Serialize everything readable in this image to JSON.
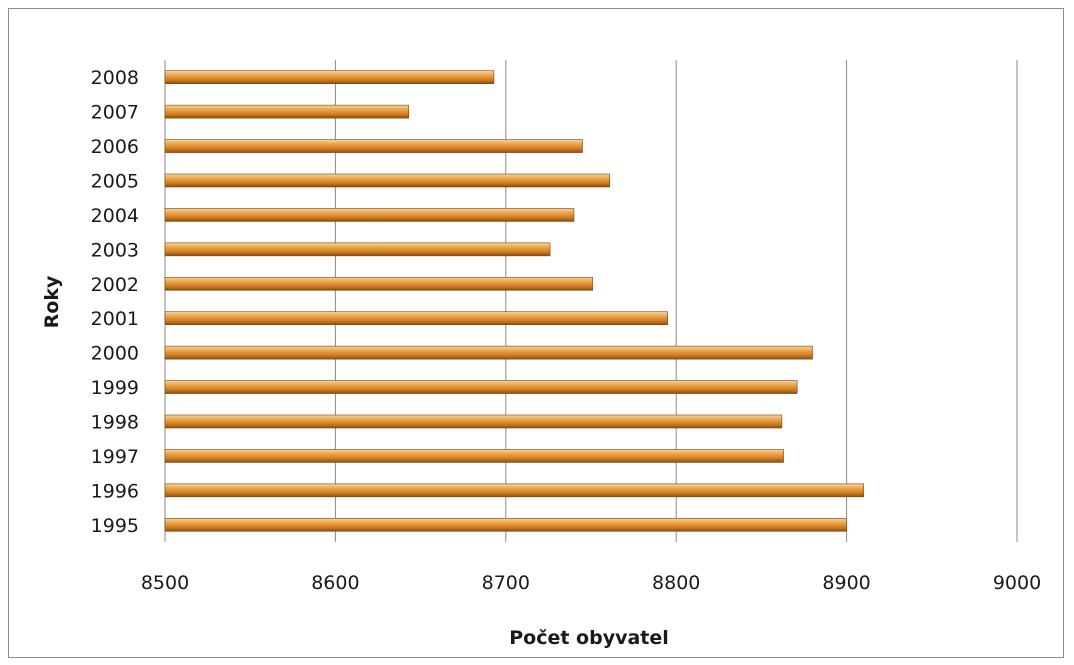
{
  "chart_data": {
    "type": "bar",
    "orientation": "horizontal",
    "categories": [
      "1995",
      "1996",
      "1997",
      "1998",
      "1999",
      "2000",
      "2001",
      "2002",
      "2003",
      "2004",
      "2005",
      "2006",
      "2007",
      "2008"
    ],
    "values": [
      8900,
      8910,
      8863,
      8862,
      8871,
      8880,
      8795,
      8751,
      8726,
      8740,
      8761,
      8745,
      8643,
      8693
    ],
    "xlabel": "Počet obyvatel",
    "ylabel": "Roky",
    "xlim": [
      8500,
      9000
    ],
    "xticks": [
      8500,
      8600,
      8700,
      8800,
      8900,
      9000
    ],
    "grid": "vertical",
    "legend": "none",
    "bar_color": "#e0902e"
  }
}
